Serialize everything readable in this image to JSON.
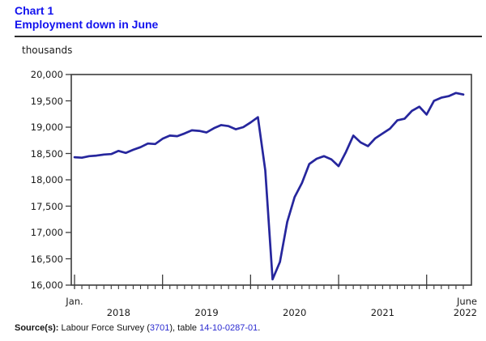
{
  "header": {
    "chart_label": "Chart 1",
    "title": "Employment down in June"
  },
  "colors": {
    "title_blue": "#1212ee",
    "line_navy": "#26269d",
    "link_blue": "#2b2bd0",
    "axis_gray": "#3c3c3c",
    "text_dark": "#1a1a1a"
  },
  "chart_data": {
    "type": "line",
    "title": "Employment down in June",
    "unit_label": "thousands",
    "x_start_label": "Jan.",
    "x_end_month_label": "June",
    "year_labels": [
      "2018",
      "2019",
      "2020",
      "2021",
      "2022"
    ],
    "ylim": [
      16000,
      20000
    ],
    "y_tick_values": [
      20000,
      19500,
      19000,
      18500,
      18000,
      17500,
      17000,
      16500,
      16000
    ],
    "y_tick_labels": [
      "20,000",
      "19,500",
      "19,000",
      "18,500",
      "18,000",
      "17,500",
      "17,000",
      "16,500",
      "16,000"
    ],
    "grid": false,
    "legend_position": "none",
    "line_color": "#26269d",
    "x": [
      "Jan 2018",
      "Feb 2018",
      "Mar 2018",
      "Apr 2018",
      "May 2018",
      "Jun 2018",
      "Jul 2018",
      "Aug 2018",
      "Sep 2018",
      "Oct 2018",
      "Nov 2018",
      "Dec 2018",
      "Jan 2019",
      "Feb 2019",
      "Mar 2019",
      "Apr 2019",
      "May 2019",
      "Jun 2019",
      "Jul 2019",
      "Aug 2019",
      "Sep 2019",
      "Oct 2019",
      "Nov 2019",
      "Dec 2019",
      "Jan 2020",
      "Feb 2020",
      "Mar 2020",
      "Apr 2020",
      "May 2020",
      "Jun 2020",
      "Jul 2020",
      "Aug 2020",
      "Sep 2020",
      "Oct 2020",
      "Nov 2020",
      "Dec 2020",
      "Jan 2021",
      "Feb 2021",
      "Mar 2021",
      "Apr 2021",
      "May 2021",
      "Jun 2021",
      "Jul 2021",
      "Aug 2021",
      "Sep 2021",
      "Oct 2021",
      "Nov 2021",
      "Dec 2021",
      "Jan 2022",
      "Feb 2022",
      "Mar 2022",
      "Apr 2022",
      "May 2022",
      "Jun 2022"
    ],
    "series": [
      {
        "name": "Employment (thousands)",
        "values": [
          18430,
          18420,
          18450,
          18460,
          18480,
          18490,
          18550,
          18510,
          18570,
          18620,
          18690,
          18680,
          18780,
          18840,
          18830,
          18880,
          18940,
          18930,
          18900,
          18980,
          19040,
          19020,
          18960,
          19000,
          19090,
          19190,
          18180,
          16110,
          16440,
          17200,
          17670,
          17940,
          18300,
          18400,
          18450,
          18390,
          18260,
          18530,
          18840,
          18710,
          18640,
          18790,
          18880,
          18970,
          19130,
          19160,
          19310,
          19390,
          19240,
          19500,
          19560,
          19590,
          19650,
          19620
        ]
      }
    ]
  },
  "source": {
    "prefix": "Source(s):",
    "text_1": " Labour Force Survey (",
    "link_1": "3701",
    "text_2": "), table ",
    "link_2": "14-10-0287-01",
    "text_3": "."
  }
}
